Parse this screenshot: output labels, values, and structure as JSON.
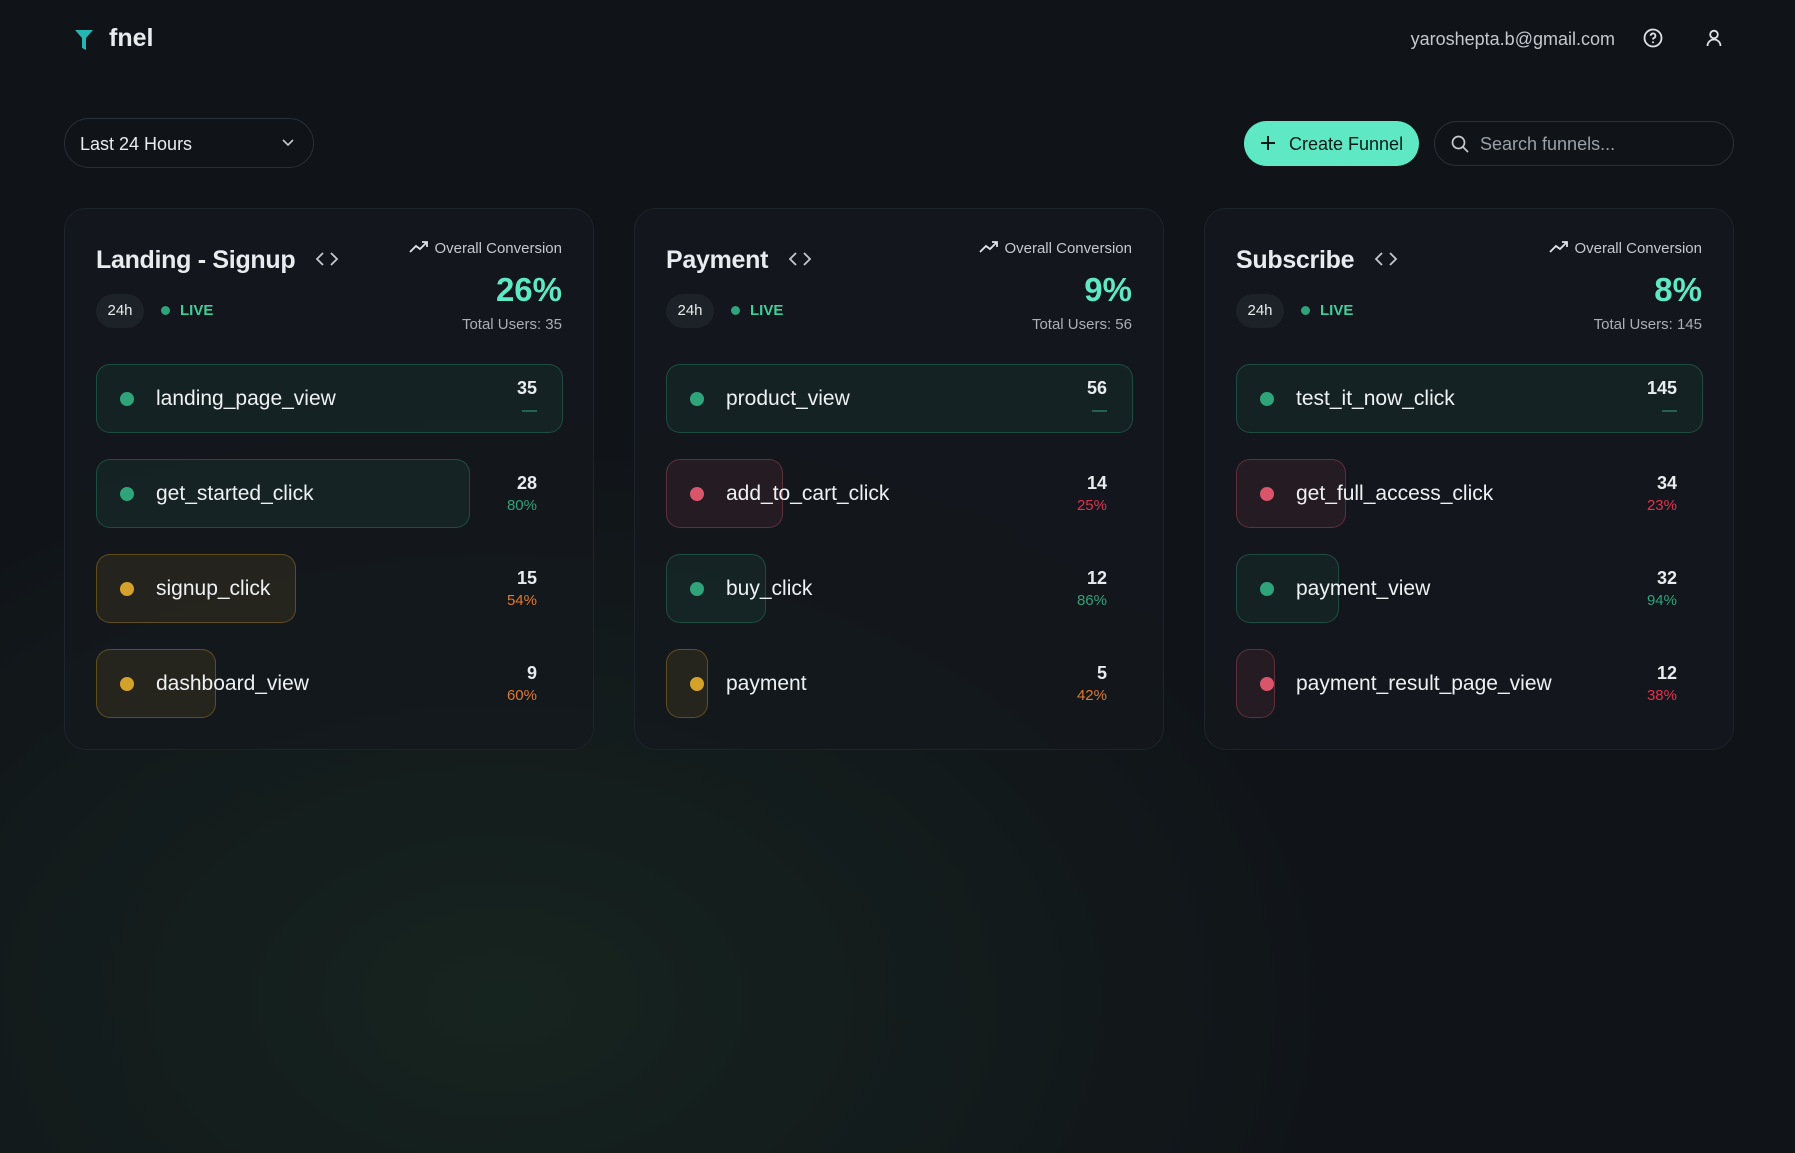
{
  "header": {
    "brand": "fnel",
    "email": "yaroshepta.b@gmail.com"
  },
  "toolbar": {
    "range": "Last 24 Hours",
    "create": "Create Funnel",
    "search_placeholder": "Search funnels..."
  },
  "funnels": [
    {
      "name": "Landing - Signup",
      "period": "24h",
      "live": "LIVE",
      "conversion_label": "Overall Conversion",
      "conversion": "26%",
      "total_users": "Total Users: 35",
      "steps": [
        {
          "name": "landing_page_view",
          "count": 35,
          "rate": "—",
          "color": "#2fa37a"
        },
        {
          "name": "get_started_click",
          "count": 28,
          "rate": "80%",
          "color": "#2fa37a"
        },
        {
          "name": "signup_click",
          "count": 15,
          "rate": "54%",
          "color": "#d4a22a"
        },
        {
          "name": "dashboard_view",
          "count": 9,
          "rate": "60%",
          "color": "#d4a22a"
        }
      ]
    },
    {
      "name": "Payment",
      "period": "24h",
      "live": "LIVE",
      "conversion_label": "Overall Conversion",
      "conversion": "9%",
      "total_users": "Total Users: 56",
      "steps": [
        {
          "name": "product_view",
          "count": 56,
          "rate": "—",
          "color": "#2fa37a"
        },
        {
          "name": "add_to_cart_click",
          "count": 14,
          "rate": "25%",
          "color": "#d9566a"
        },
        {
          "name": "buy_click",
          "count": 12,
          "rate": "86%",
          "color": "#2fa37a"
        },
        {
          "name": "payment",
          "count": 5,
          "rate": "42%",
          "color": "#d4a22a"
        }
      ]
    },
    {
      "name": "Subscribe",
      "period": "24h",
      "live": "LIVE",
      "conversion_label": "Overall Conversion",
      "conversion": "8%",
      "total_users": "Total Users: 145",
      "steps": [
        {
          "name": "test_it_now_click",
          "count": 145,
          "rate": "—",
          "color": "#2fa37a"
        },
        {
          "name": "get_full_access_click",
          "count": 34,
          "rate": "23%",
          "color": "#d9566a"
        },
        {
          "name": "payment_view",
          "count": 32,
          "rate": "94%",
          "color": "#2fa37a"
        },
        {
          "name": "payment_result_page_view",
          "count": 12,
          "rate": "38%",
          "color": "#d9566a"
        }
      ]
    }
  ]
}
